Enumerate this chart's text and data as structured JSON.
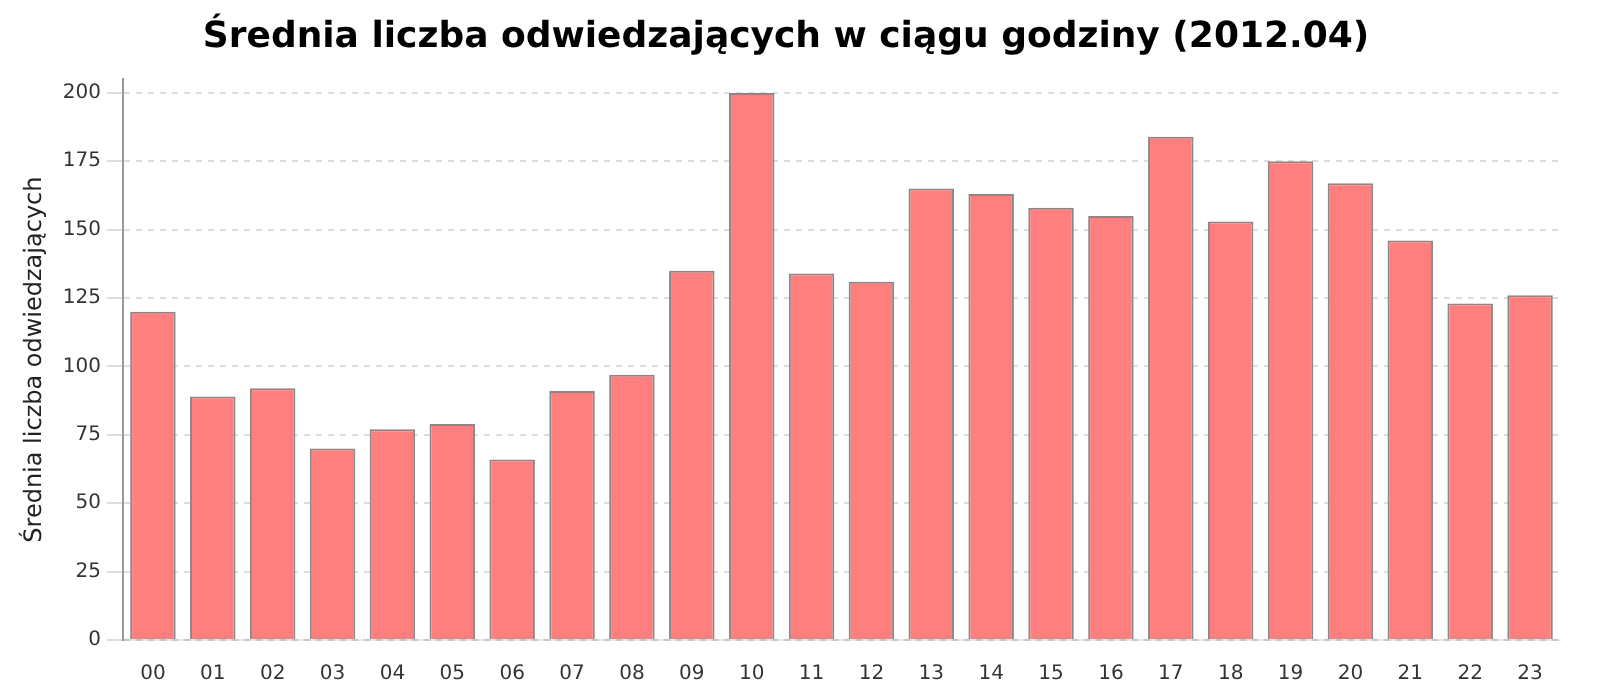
{
  "chart_data": {
    "type": "bar",
    "title": "Średnia liczba odwiedzających w ciągu godziny (2012.04)",
    "ylabel": "Średnia liczba odwiedzających",
    "categories": [
      "00",
      "01",
      "02",
      "03",
      "04",
      "05",
      "06",
      "07",
      "08",
      "09",
      "10",
      "11",
      "12",
      "13",
      "14",
      "15",
      "16",
      "17",
      "18",
      "19",
      "20",
      "21",
      "22",
      "23"
    ],
    "values": [
      120,
      89,
      92,
      70,
      77,
      79,
      66,
      91,
      97,
      135,
      200,
      134,
      131,
      165,
      163,
      158,
      155,
      184,
      153,
      175,
      167,
      146,
      123,
      126
    ],
    "color": "#ff7f7f",
    "ylim": [
      0,
      205
    ],
    "yticks": [
      0,
      25,
      50,
      75,
      100,
      125,
      150,
      175,
      200
    ],
    "grid": "y"
  }
}
